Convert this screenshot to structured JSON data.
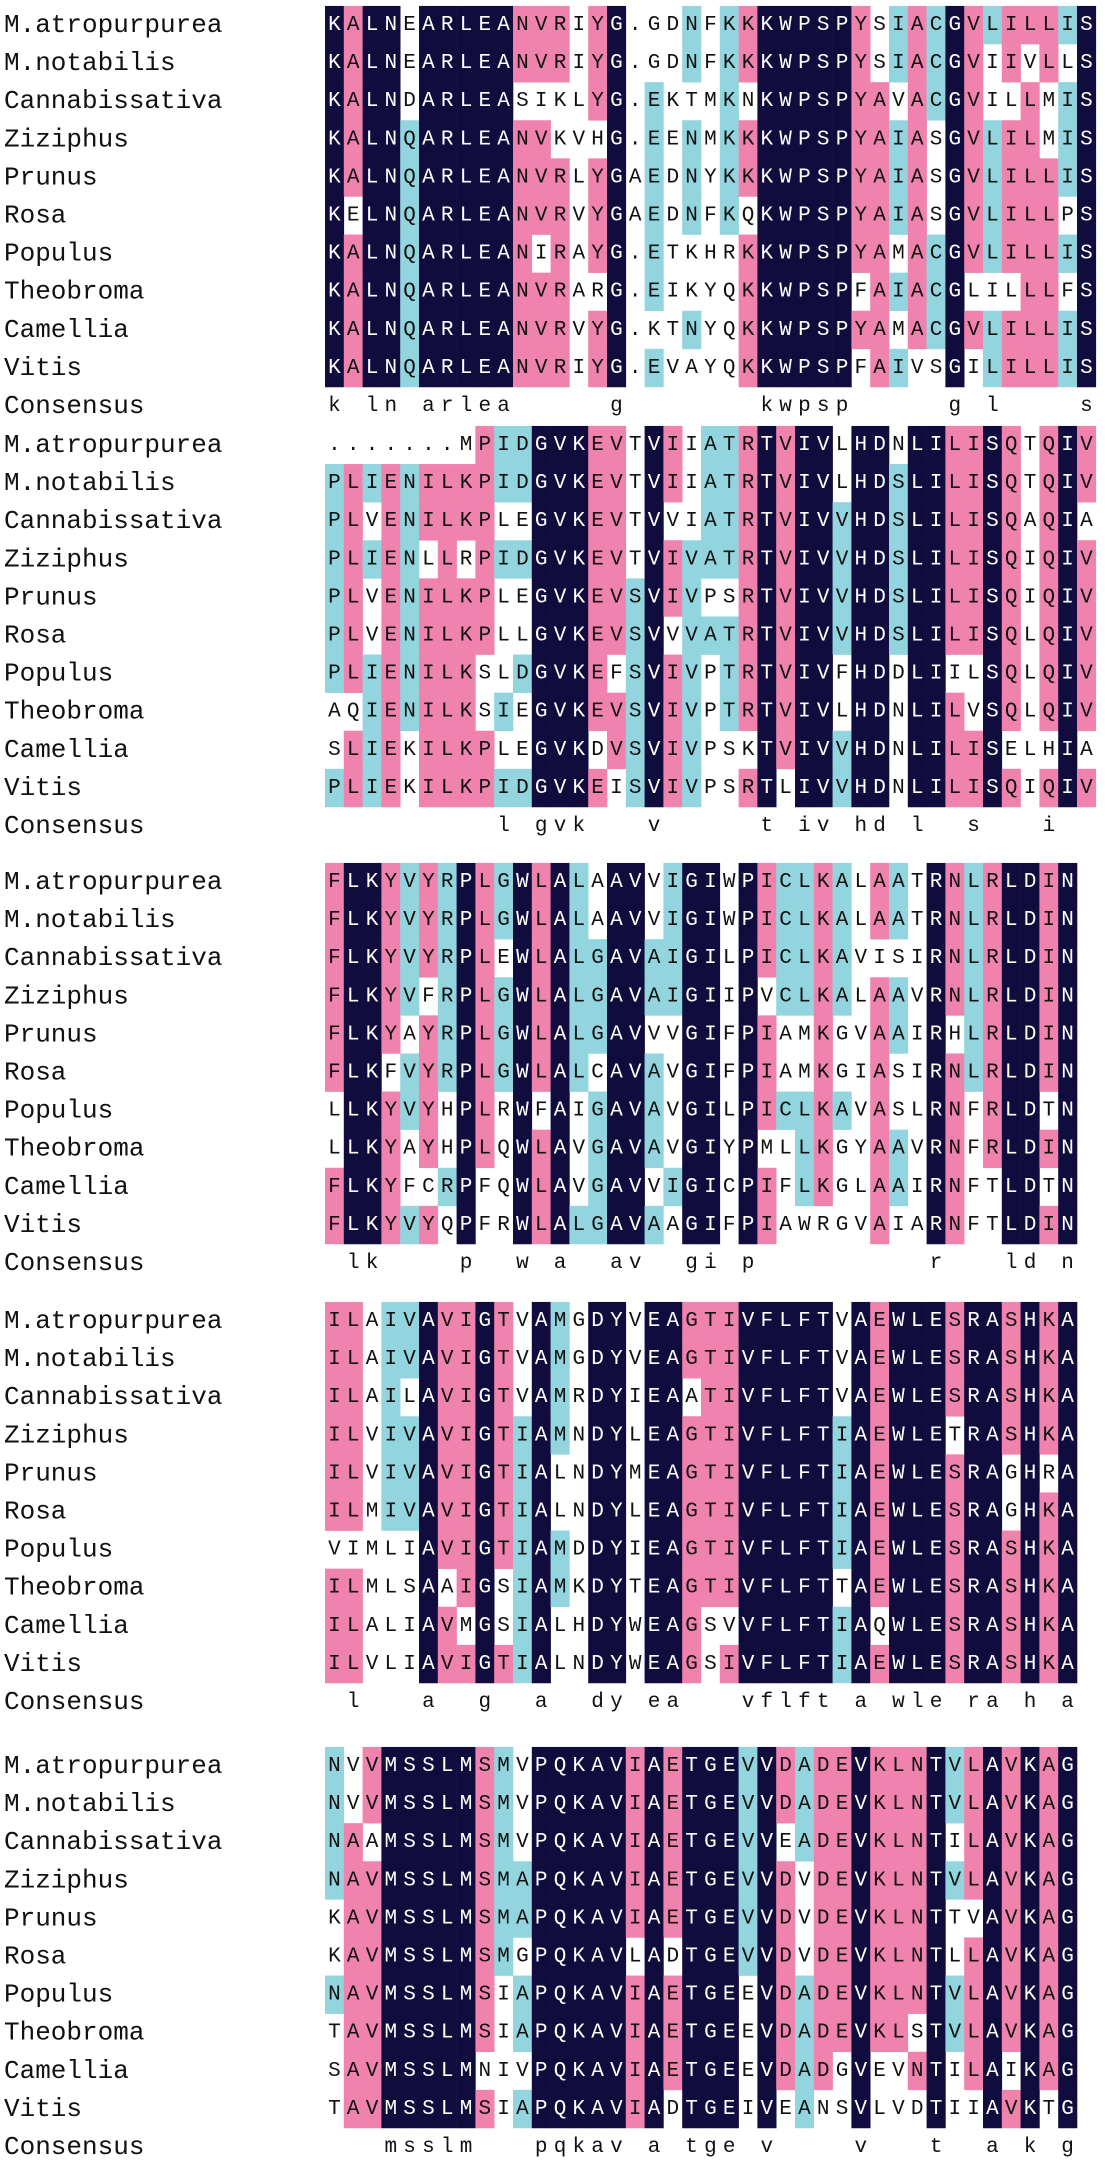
{
  "species": [
    "M.atropurpurea",
    "M.notabilis",
    "Cannabissativa",
    "Ziziphus",
    "Prunus",
    "Rosa",
    "Populus",
    "Theobroma",
    "Camellia",
    "Vitis"
  ],
  "consensus_label": "Consensus",
  "blocks": [
    {
      "sequences": [
        "KALNEARLEANVRIYG.GDNFKKKWPSPYSIACGVLILLIS",
        "KALNEARLEANVRIYG.GDNFKKKWPSPYSIACGVIIVLLS",
        "KALNDARLEASIKLYG.EKTMKNKWPSPYAVACGVILLMIS",
        "KALNQARLEANVKVHG.EENMKKKWPSPYAIASGVLILMIS",
        "KALNQARLEANVRLYGAEDNYKKKWPSPYAIASGVLILLIS",
        "KELNQARLEANVRVYGAEDNFKQKWPSPYAIASGVLILLPS",
        "KALNQARLEANIRAYG.ETKHRKKWPSPYAMACGVLILLIS",
        "KALNQARLEANVRARG.EIKYQKKWPSPFAIACGLILLLFS",
        "KALNQARLEANVRVYG.KTNYQKKWPSPYAMACGVLILLIS",
        "KALNQARLEANVRIYG.EVAYQKKWPSPFAIVSGILILLIS"
      ],
      "consensus": "k ln arlea     g       kwpsp     g l    s"
    },
    {
      "sequences": [
        ".......MPIDGVKEVTVIIATRTVIVLHDNLILISQTQIV",
        "PLIENILKPIDGVKEVTVIIATRTVIVLHDSLILISQTQIV",
        "PLVENILKPLEGVKEVTVVIATRTVIVVHDSLILISQAQIA",
        "PLIENLLRPIDGVKEVTVIVATRTVIVVHDSLILISQIQIV",
        "PLVENILKPLEGVKEVSVIVPSRTVIVVHDSLILISQIQIV",
        "PLVENILKPLLGVKEVSVVVATRTVIVVHDSLILISQLQIV",
        "PLIENILKSLDGVKEFSVIVPTRTVIVFHDDLIILSQLQIV",
        "AQIENILKSIEGVKEVSVIVPTRTVIVLHDNLILVSQLQIV",
        "SLIEKILKPLEGVKDVSVIVPSKTVIVVHDNLILISELHIA",
        "PLIEKILKPIDGVKEISVIVPSRTLIVVHDNLILISQIQIV"
      ],
      "consensus": "         l gvk   v     t iv hd l  s   i"
    },
    {
      "sequences": [
        "FLKYVYRPLGWLALAAVVIGIWPICLKALAATRNLRLDIN",
        "FLKYVYRPLGWLALAAVVIGIWPICLKALAATRNLRLDIN",
        "FLKYVYRPLEWLALGAVAIGILPICLKAVISIRNLRLDIN",
        "FLKYVFRPLGWLALGAVAIGIIPVCLKALAAVRNLRLDIN",
        "FLKYAYRPLGWLALGAVVVGIFPIAMKGVAAIRHLRLDIN",
        "FLKFVYRPLGWLALCAVAVGIFPIAMKGIASIRNLRLDIN",
        "LLKYVYHPLRWFAIGAVAVGILPICLKAVASLRNFRLDTN",
        "LLKYAYHPLQWLAVGAVAVGIYPMLLKGYAAVRNFRLDIN",
        "FLKYFCRPFQWLAVGAVVIGICPIFLKGLAAIRNFTLDTN",
        "FLKYVYQPFRWLALGAVAAGIFPIAWRGVAIARNFTLDIN"
      ],
      "consensus": " lk    p  w a  av  gi p         r   ld n"
    },
    {
      "sequences": [
        "ILAIVAVIGTVAMGDYVEAGTIVFLFTVAEWLESRASHKA",
        "ILAIVAVIGTVAMGDYVEAGTIVFLFTVAEWLESRASHKA",
        "ILAILAVIGTVAMRDYIEAATIVFLFTVAEWLESRASHKA",
        "ILVIVAVIGTIAMNDYLEAGTIVFLFTIAEWLETRASHKA",
        "ILVIVAVIGTIALNDYMEAGTIVFLFTIAEWLESRAGHRA",
        "ILMIVAVIGTIALNDYLEAGTIVFLFTIAEWLESRAGHKA",
        "VIMLIAVIGTIAMDDYIEAGTIVFLFTIAEWLESRASHKA",
        "ILMLSAAIGSIAMKDYTEAGTIVFLFTTAEWLESRASHKA",
        "ILALIAVMGSIALHDYWEAGSVVFLFTIAQWLESRASHKA",
        "ILVLIAVIGTIALNDYWEAGSIVFLFTIAEWLESRASHKA"
      ],
      "consensus": " l   a  g  a  dy ea   vflft a wle ra h a"
    },
    {
      "sequences": [
        "NVVMSSLMSMVPQKAVIAETGEVVDADEVKLNTVLAVKAG",
        "NVVMSSLMSMVPQKAVIAETGEVVDADEVKLNTVLAVKAG",
        "NAAMSSLMSMVPQKAVIAETGEVVEADEVKLNTILAVKAG",
        "NAVMSSLMSMAPQKAVIAETGEVVDVDEVKLNTVLAVKAG",
        "KAVMSSLMSMAPQKAVIAETGEVVDVDEVKLNTTVAVKAG",
        "KAVMSSLMSMGPQKAVLADTGEVVDVDEVKLNTLLAVKAG",
        "NAVMSSLMSIAPQKAVIAETGEEVDADEVKLNTVLAVKAG",
        "TAVMSSLMSIAPQKAVIAETGEEVDADEVKLSTVLAVKAG",
        "SAVMSSLMNIVPQKAVIAETGEEVDADGVEVNTILAIKAG",
        "TAVMSSLMSIAPQKAVIADTGEIVEANSVLVDTIIAVKTG"
      ],
      "consensus": "   msslm   pqkav a tge v    v   t  a k g"
    }
  ]
}
